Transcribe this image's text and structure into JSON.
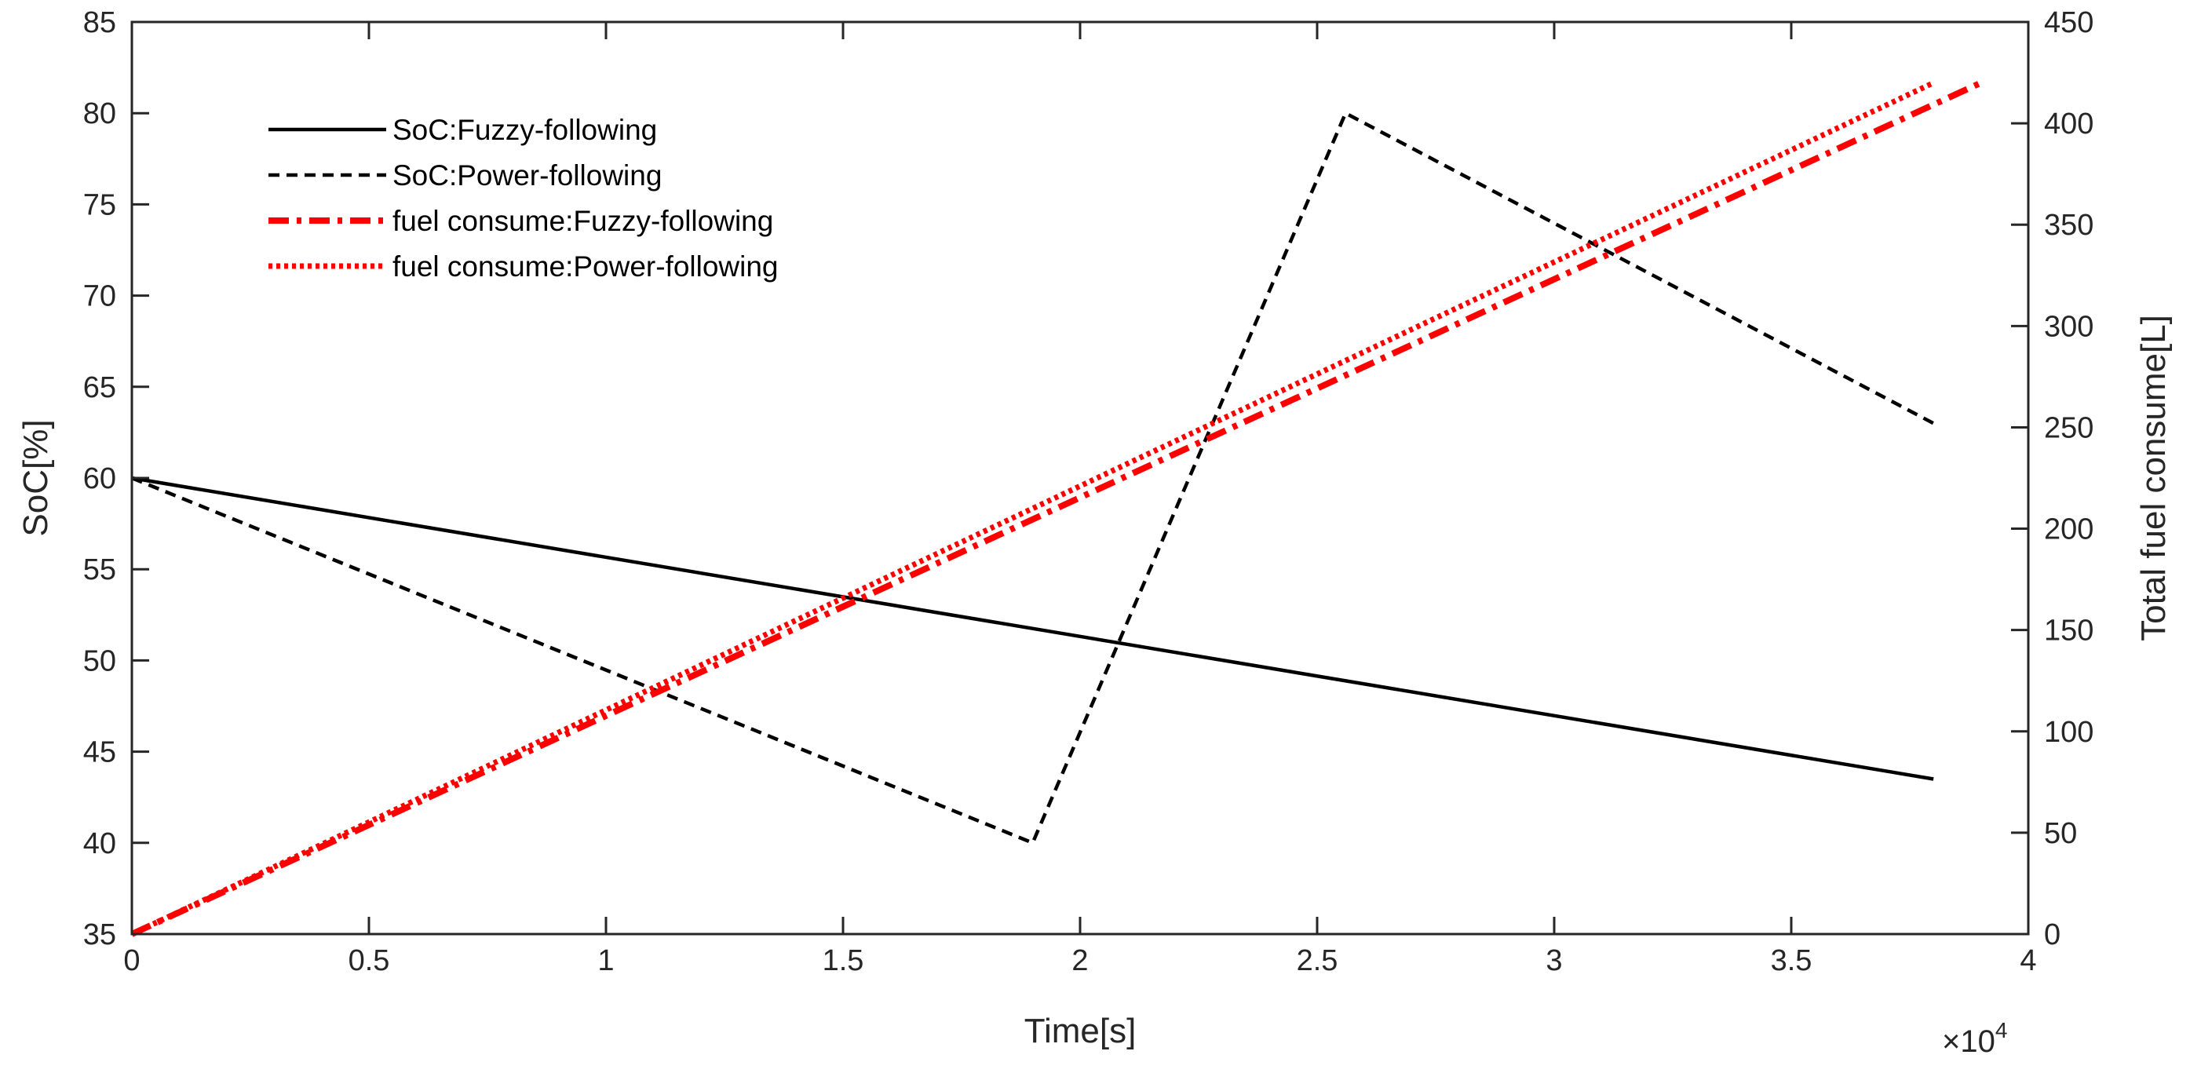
{
  "chart_data": {
    "type": "line",
    "xlabel": "Time[s]",
    "ylabel_left": "SoC[%]",
    "ylabel_right": "Total fuel consume[L]",
    "x_exponent_label": "×10",
    "x_exponent_power": "4",
    "xlim": [
      0,
      40000
    ],
    "ylim_left": [
      35,
      85
    ],
    "ylim_right": [
      0,
      450
    ],
    "x_ticks": [
      0,
      5000,
      10000,
      15000,
      20000,
      25000,
      30000,
      35000,
      40000
    ],
    "x_tick_labels": [
      "0",
      "0.5",
      "1",
      "1.5",
      "2",
      "2.5",
      "3",
      "3.5",
      "4"
    ],
    "y_left_ticks": [
      35,
      40,
      45,
      50,
      55,
      60,
      65,
      70,
      75,
      80,
      85
    ],
    "y_left_tick_labels": [
      "35",
      "40",
      "45",
      "50",
      "55",
      "60",
      "65",
      "70",
      "75",
      "80",
      "85"
    ],
    "y_right_ticks": [
      0,
      50,
      100,
      150,
      200,
      250,
      300,
      350,
      400,
      450
    ],
    "y_right_tick_labels": [
      "0",
      "50",
      "100",
      "150",
      "200",
      "250",
      "300",
      "350",
      "400",
      "450"
    ],
    "grid": false,
    "legend_position": "top-left",
    "series": [
      {
        "name": "SoC:Fuzzy-following",
        "axis": "left",
        "color": "#000000",
        "style": "solid",
        "x": [
          0,
          38000
        ],
        "y": [
          60,
          43.5
        ]
      },
      {
        "name": "SoC:Power-following",
        "axis": "left",
        "color": "#000000",
        "style": "dashed",
        "x": [
          0,
          19000,
          25600,
          38000
        ],
        "y": [
          60,
          40,
          80,
          63
        ]
      },
      {
        "name": "fuel consume:Fuzzy-following",
        "axis": "right",
        "color": "#ff0000",
        "style": "dashdot",
        "x": [
          0,
          39000
        ],
        "y": [
          0,
          420
        ]
      },
      {
        "name": "fuel consume:Power-following",
        "axis": "right",
        "color": "#ff0000",
        "style": "dotted",
        "x": [
          0,
          38000
        ],
        "y": [
          0,
          420
        ]
      }
    ]
  }
}
